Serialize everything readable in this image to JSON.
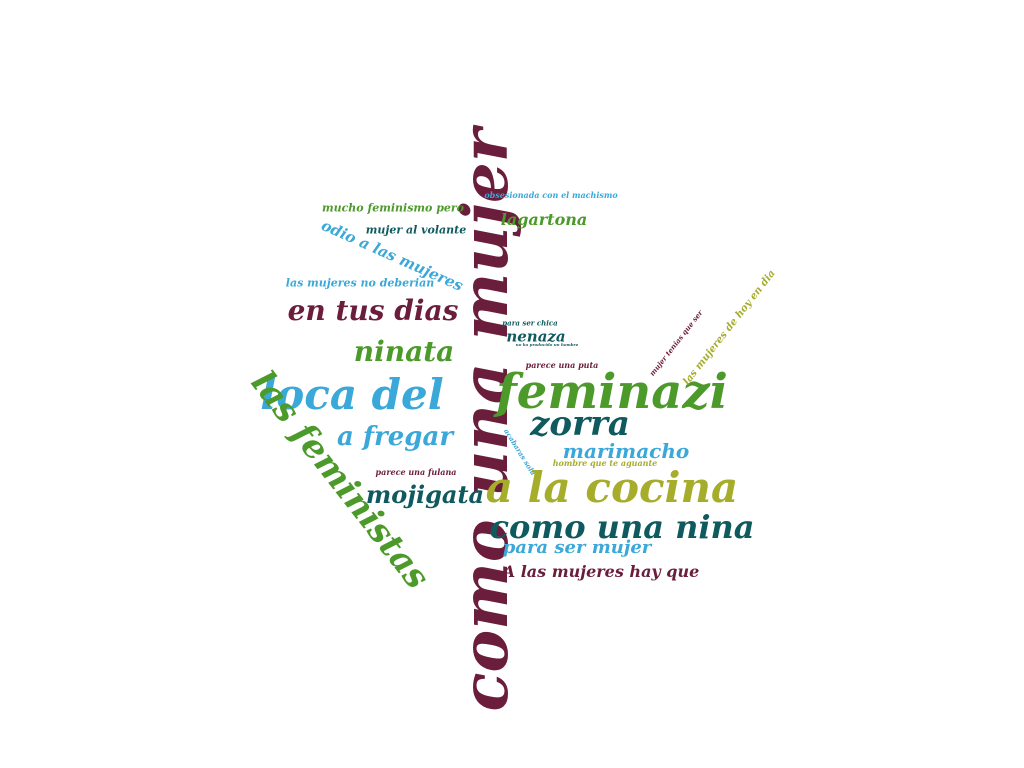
{
  "palette": {
    "maroon": "#6b1d3c",
    "green": "#4c9a2a",
    "teal": "#0f5a5e",
    "sky": "#3aa8d8",
    "olive": "#a6ad2b",
    "background": "#ffffff"
  },
  "words": [
    {
      "text": "como una mujer",
      "color": "maroon"
    },
    {
      "text": "feminazi",
      "color": "green"
    },
    {
      "text": "a la cocina",
      "color": "olive"
    },
    {
      "text": "loca del",
      "color": "sky"
    },
    {
      "text": "las feministas",
      "color": "green"
    },
    {
      "text": "como una nina",
      "color": "teal"
    },
    {
      "text": "zorra",
      "color": "teal"
    },
    {
      "text": "en tus dias",
      "color": "maroon"
    },
    {
      "text": "ninata",
      "color": "green"
    },
    {
      "text": "a fregar",
      "color": "sky"
    },
    {
      "text": "mojigata",
      "color": "teal"
    },
    {
      "text": "marimacho",
      "color": "sky"
    },
    {
      "text": "para ser mujer",
      "color": "sky"
    },
    {
      "text": "A las mujeres hay que",
      "color": "maroon"
    },
    {
      "text": "lagartona",
      "color": "green"
    },
    {
      "text": "odio a las mujeres",
      "color": "sky"
    },
    {
      "text": "mucho feminismo pero",
      "color": "green"
    },
    {
      "text": "mujer al volante",
      "color": "teal"
    },
    {
      "text": "las mujeres no deberian",
      "color": "sky"
    },
    {
      "text": "obsesionada con el machismo",
      "color": "sky"
    },
    {
      "text": "nenaza",
      "color": "teal"
    },
    {
      "text": "para ser chica",
      "color": "teal"
    },
    {
      "text": "parece una puta",
      "color": "maroon"
    },
    {
      "text": "las mujeres de hoy en dia",
      "color": "olive"
    },
    {
      "text": "mujer tenias que ser",
      "color": "maroon"
    },
    {
      "text": "hombre que te aguante",
      "color": "olive"
    },
    {
      "text": "parece una fulana",
      "color": "maroon"
    },
    {
      "text": "acabaras sola",
      "color": "sky"
    },
    {
      "text": "no ha producido un hombre",
      "color": "teal"
    }
  ]
}
